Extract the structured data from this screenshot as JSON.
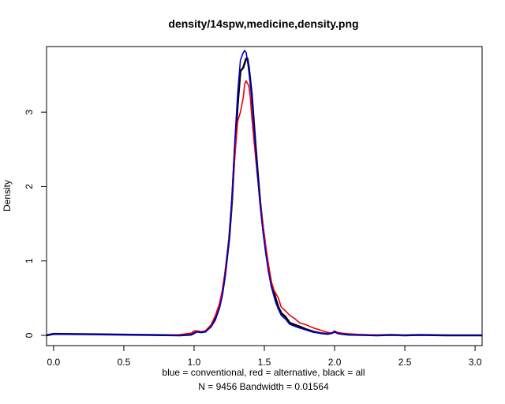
{
  "chart_data": {
    "type": "line",
    "title": "density/14spw,medicine,density.png",
    "xlabel_line1": "blue = conventional, red = alternative, black = all",
    "xlabel_line2": "N = 9456   Bandwidth = 0.01564",
    "ylabel": "Density",
    "xlim": [
      -0.05,
      3.05
    ],
    "ylim": [
      0,
      3.85
    ],
    "x_ticks": [
      0.0,
      0.5,
      1.0,
      1.5,
      2.0,
      2.5,
      3.0
    ],
    "x_tick_labels": [
      "0.0",
      "0.5",
      "1.0",
      "1.5",
      "2.0",
      "2.5",
      "3.0"
    ],
    "y_ticks": [
      0,
      1,
      2,
      3
    ],
    "y_tick_labels": [
      "0",
      "1",
      "2",
      "3"
    ],
    "grid": false,
    "series": [
      {
        "name": "all",
        "color": "#000000",
        "width": 2.5,
        "x": [
          -0.05,
          0.0,
          0.9,
          0.98,
          1.0,
          1.02,
          1.05,
          1.08,
          1.12,
          1.15,
          1.18,
          1.2,
          1.22,
          1.25,
          1.27,
          1.29,
          1.31,
          1.33,
          1.35,
          1.37,
          1.38,
          1.39,
          1.41,
          1.43,
          1.45,
          1.47,
          1.49,
          1.51,
          1.53,
          1.55,
          1.58,
          1.6,
          1.62,
          1.65,
          1.68,
          1.72,
          1.75,
          1.8,
          1.85,
          1.9,
          1.95,
          1.98,
          2.0,
          2.02,
          2.05,
          2.1,
          2.2,
          2.3,
          2.4,
          2.5,
          2.6,
          2.8,
          3.0,
          3.05
        ],
        "y": [
          0.0,
          0.02,
          0.0,
          0.01,
          0.03,
          0.05,
          0.04,
          0.05,
          0.12,
          0.22,
          0.38,
          0.55,
          0.8,
          1.3,
          1.8,
          2.5,
          3.1,
          3.55,
          3.6,
          3.72,
          3.72,
          3.6,
          3.25,
          2.75,
          2.25,
          1.8,
          1.45,
          1.15,
          0.9,
          0.7,
          0.5,
          0.38,
          0.3,
          0.25,
          0.17,
          0.14,
          0.12,
          0.08,
          0.05,
          0.03,
          0.02,
          0.03,
          0.05,
          0.03,
          0.02,
          0.01,
          0.005,
          0.0,
          0.005,
          0.0,
          0.005,
          0.0,
          0.0,
          0.0
        ]
      },
      {
        "name": "alternative",
        "color": "#ee0000",
        "width": 1.6,
        "x": [
          0.8,
          0.9,
          0.98,
          1.0,
          1.02,
          1.05,
          1.08,
          1.12,
          1.15,
          1.18,
          1.2,
          1.22,
          1.25,
          1.27,
          1.29,
          1.31,
          1.33,
          1.35,
          1.36,
          1.37,
          1.39,
          1.4,
          1.41,
          1.43,
          1.45,
          1.47,
          1.49,
          1.51,
          1.53,
          1.55,
          1.57,
          1.6,
          1.62,
          1.65,
          1.68,
          1.72,
          1.75,
          1.8,
          1.85,
          1.9,
          1.95,
          1.98,
          2.0,
          2.02,
          2.05,
          2.1,
          2.2,
          2.3,
          2.4,
          2.5
        ],
        "y": [
          0.0,
          0.01,
          0.03,
          0.06,
          0.06,
          0.05,
          0.06,
          0.14,
          0.26,
          0.42,
          0.6,
          0.85,
          1.3,
          1.8,
          2.4,
          2.88,
          3.0,
          3.2,
          3.38,
          3.42,
          3.35,
          3.2,
          2.95,
          2.55,
          2.15,
          1.8,
          1.5,
          1.2,
          0.95,
          0.72,
          0.6,
          0.5,
          0.38,
          0.33,
          0.27,
          0.22,
          0.17,
          0.14,
          0.1,
          0.07,
          0.04,
          0.03,
          0.06,
          0.04,
          0.03,
          0.02,
          0.01,
          0.005,
          0.0,
          0.0
        ]
      },
      {
        "name": "conventional",
        "color": "#0000cc",
        "width": 1.6,
        "x": [
          -0.05,
          0.0,
          0.9,
          0.98,
          1.0,
          1.02,
          1.05,
          1.08,
          1.12,
          1.15,
          1.18,
          1.2,
          1.22,
          1.25,
          1.27,
          1.29,
          1.31,
          1.33,
          1.35,
          1.36,
          1.37,
          1.38,
          1.39,
          1.41,
          1.43,
          1.45,
          1.47,
          1.49,
          1.51,
          1.53,
          1.55,
          1.58,
          1.6,
          1.62,
          1.65,
          1.68,
          1.72,
          1.75,
          1.8,
          1.85,
          1.9,
          1.95,
          1.98,
          2.0,
          2.02,
          2.05,
          2.1,
          2.2,
          2.3,
          2.4,
          2.5,
          2.6,
          2.8,
          3.0,
          3.05
        ],
        "y": [
          0.0,
          0.02,
          0.0,
          0.01,
          0.03,
          0.05,
          0.04,
          0.05,
          0.11,
          0.2,
          0.36,
          0.53,
          0.78,
          1.3,
          1.85,
          2.6,
          3.25,
          3.7,
          3.8,
          3.83,
          3.8,
          3.7,
          3.55,
          3.2,
          2.7,
          2.2,
          1.75,
          1.4,
          1.1,
          0.85,
          0.65,
          0.45,
          0.35,
          0.27,
          0.22,
          0.15,
          0.12,
          0.1,
          0.07,
          0.04,
          0.03,
          0.02,
          0.03,
          0.05,
          0.03,
          0.02,
          0.01,
          0.005,
          0.0,
          0.005,
          0.0,
          0.005,
          0.0,
          0.0,
          0.0
        ]
      }
    ]
  }
}
